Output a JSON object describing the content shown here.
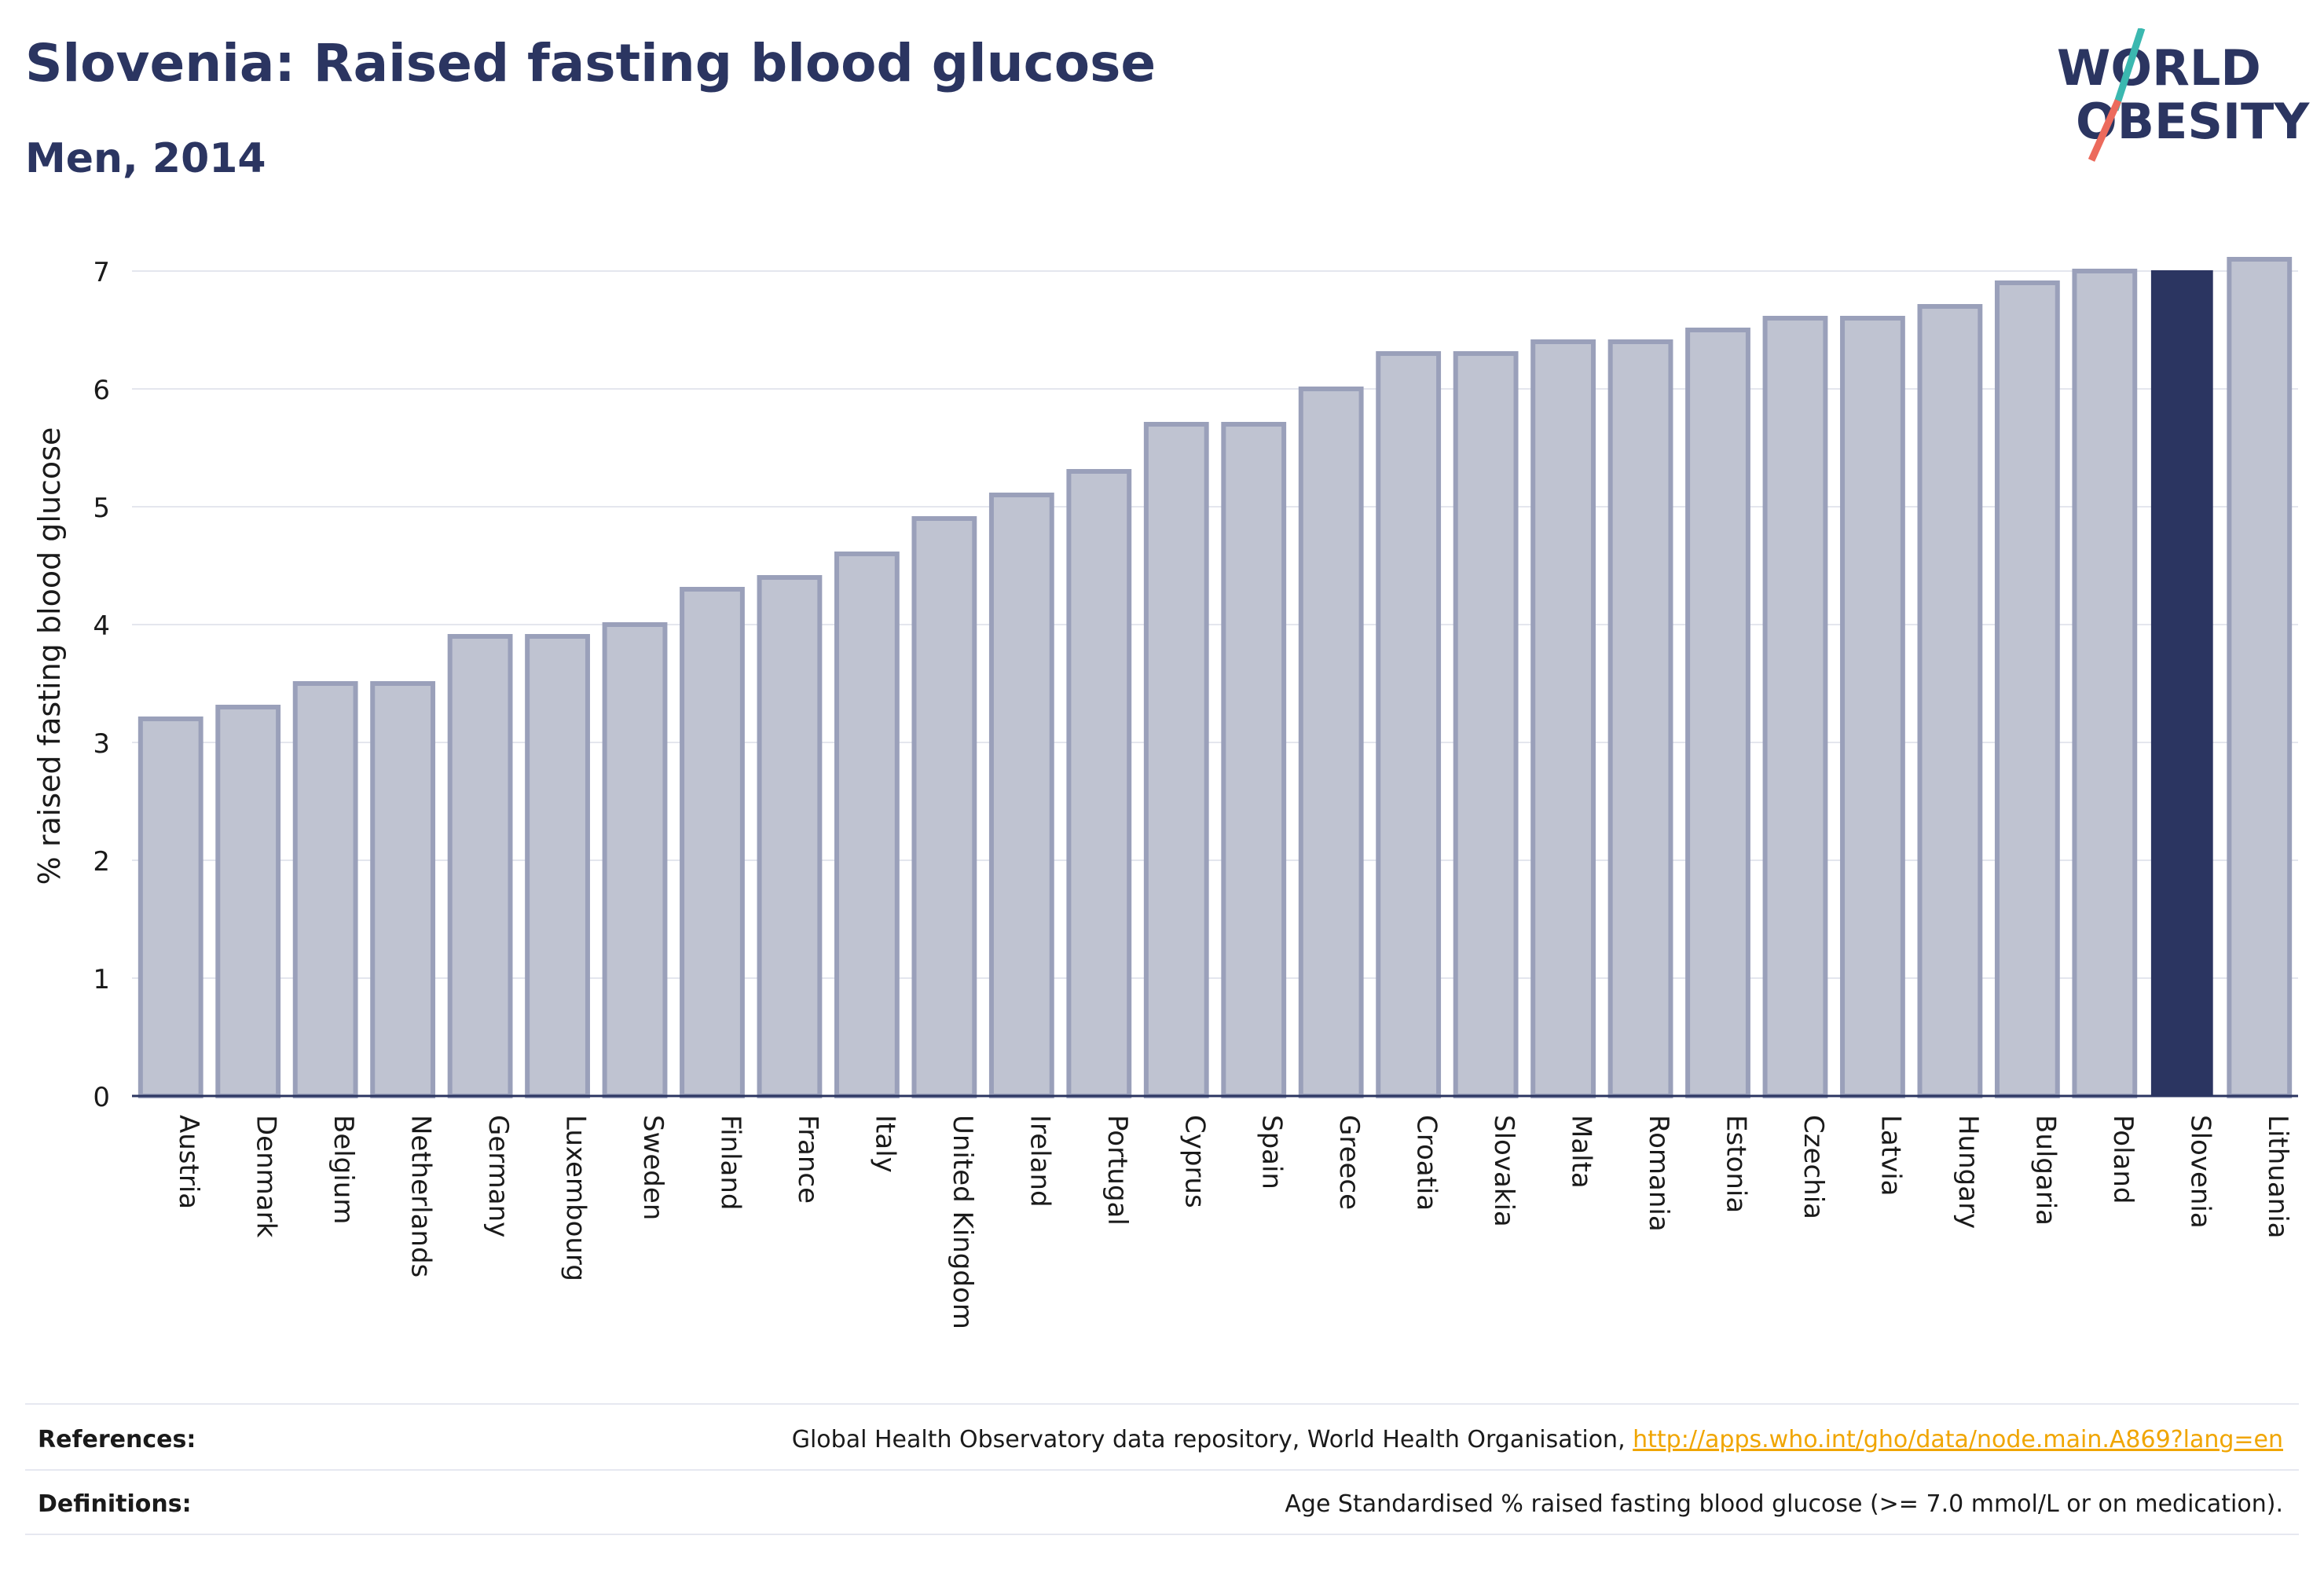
{
  "header": {
    "title": "Slovenia: Raised fasting blood glucose",
    "subtitle": "Men, 2014"
  },
  "logo": {
    "line1": "WORLD",
    "line2": "OBESITY",
    "colors": {
      "text": "#2b3561",
      "slash_teal": "#3bb8b0",
      "slash_coral": "#ec6a5c"
    }
  },
  "chart_data": {
    "type": "bar",
    "title": "",
    "xlabel": "",
    "ylabel": "% raised fasting blood glucose",
    "ylim": [
      0,
      7.3
    ],
    "yticks": [
      0,
      1,
      2,
      3,
      4,
      5,
      6,
      7
    ],
    "grid": true,
    "highlight": "Slovenia",
    "colors": {
      "bar": "#bfc3d1",
      "bar_border": "#9aa0ba",
      "highlight": "#2b3561",
      "axis": "#2b3561",
      "grid": "#e4e6ee"
    },
    "categories": [
      "Austria",
      "Denmark",
      "Belgium",
      "Netherlands",
      "Germany",
      "Luxembourg",
      "Sweden",
      "Finland",
      "France",
      "Italy",
      "United Kingdom",
      "Ireland",
      "Portugal",
      "Cyprus",
      "Spain",
      "Greece",
      "Croatia",
      "Slovakia",
      "Malta",
      "Romania",
      "Estonia",
      "Czechia",
      "Latvia",
      "Hungary",
      "Bulgaria",
      "Poland",
      "Slovenia",
      "Lithuania"
    ],
    "values": [
      3.2,
      3.3,
      3.5,
      3.5,
      3.9,
      3.9,
      4.0,
      4.3,
      4.4,
      4.6,
      4.9,
      5.1,
      5.3,
      5.7,
      5.7,
      6.0,
      6.3,
      6.3,
      6.4,
      6.4,
      6.5,
      6.6,
      6.6,
      6.7,
      6.9,
      7.0,
      7.0,
      7.1
    ]
  },
  "footer": {
    "references_label": "References:",
    "references_text": "Global Health Observatory data repository, World Health Organisation, ",
    "references_link": "http://apps.who.int/gho/data/node.main.A869?lang=en",
    "definitions_label": "Definitions:",
    "definitions_text": "Age Standardised % raised fasting blood glucose (>= 7.0 mmol/L or on medication)."
  }
}
